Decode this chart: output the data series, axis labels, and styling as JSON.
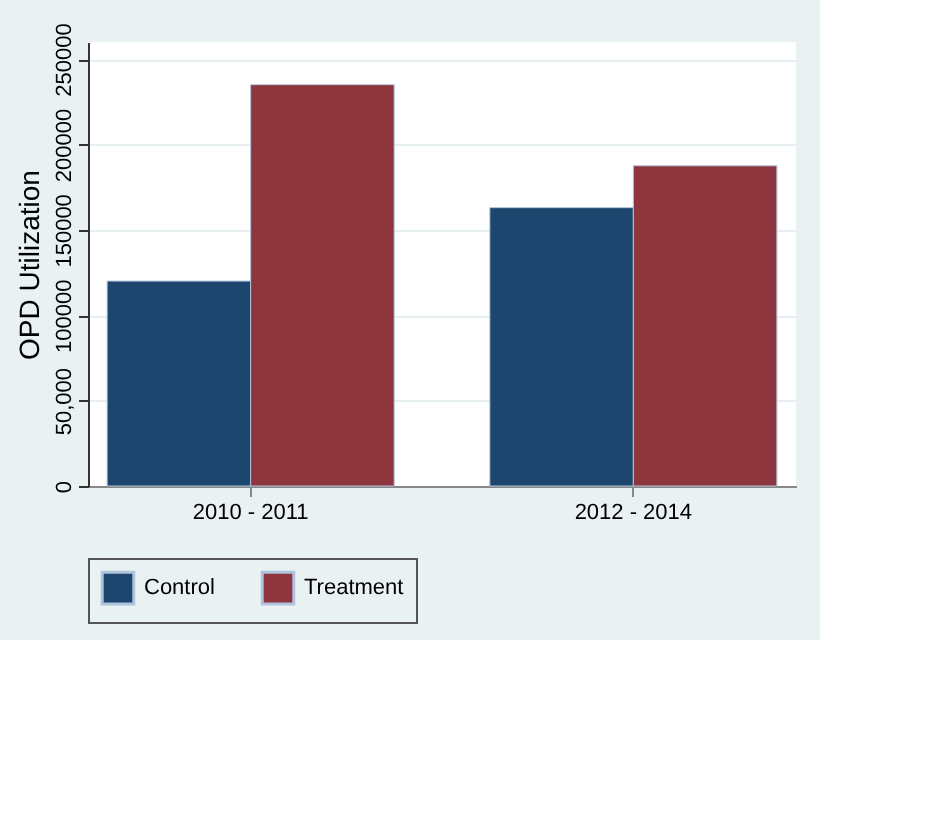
{
  "chart_data": {
    "type": "bar",
    "ylabel": "OPD Utilization",
    "categories": [
      "2010 - 2011",
      "2012 - 2014"
    ],
    "series": [
      {
        "name": "Control",
        "color": "#1c466e",
        "values": [
          120000,
          163000
        ]
      },
      {
        "name": "Treatment",
        "color": "#8e353d",
        "values": [
          235000,
          187500
        ]
      }
    ],
    "ylim": [
      0,
      260000
    ],
    "yticks": [
      0,
      {
        "value": 50000,
        "label": "50,000"
      },
      100000,
      150000,
      200000,
      250000
    ],
    "grid": "y",
    "legend": "bottom"
  }
}
